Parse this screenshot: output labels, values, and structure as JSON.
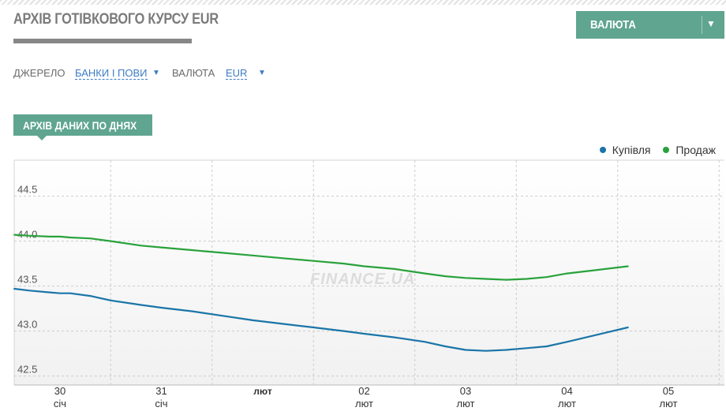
{
  "header": {
    "title": "АРХІВ ГОТІВКОВОГО КУРСУ EUR",
    "currency_button": "ВАЛЮТА"
  },
  "filters": {
    "source_label": "ДЖЕРЕЛО",
    "source_value": "БАНКИ І ПОВИ",
    "currency_label": "ВАЛЮТА",
    "currency_value": "EUR"
  },
  "section_tab": "АРХІВ ДАНИХ ПО ДНЯХ",
  "watermark": "FINANCE.UA",
  "colors": {
    "buy": "#1a75a8",
    "sell": "#29a23b",
    "accent": "#5fa58f"
  },
  "chart_data": {
    "type": "line",
    "x_ticks": [
      {
        "day": "30",
        "month": "січ"
      },
      {
        "day": "31",
        "month": "січ"
      },
      {
        "day": "лют",
        "month": ""
      },
      {
        "day": "02",
        "month": "лют"
      },
      {
        "day": "03",
        "month": "лют"
      },
      {
        "day": "04",
        "month": "лют"
      },
      {
        "day": "05",
        "month": "лют"
      }
    ],
    "y_ticks": [
      42.5,
      43.0,
      43.5,
      44.0,
      44.5
    ],
    "ylim": [
      42.4,
      44.9
    ],
    "xlim": [
      -0.45,
      6.5
    ],
    "grid": true,
    "legend_position": "top-right",
    "series": [
      {
        "name": "Купівля",
        "x": [
          -0.45,
          -0.3,
          -0.1,
          0.0,
          0.1,
          0.3,
          0.5,
          0.8,
          1.0,
          1.3,
          1.6,
          1.9,
          2.2,
          2.5,
          2.8,
          3.0,
          3.3,
          3.6,
          3.8,
          4.0,
          4.2,
          4.4,
          4.6,
          4.8,
          5.0,
          5.3,
          5.6
        ],
        "values": [
          43.47,
          43.45,
          43.43,
          43.42,
          43.42,
          43.39,
          43.34,
          43.29,
          43.26,
          43.22,
          43.17,
          43.12,
          43.08,
          43.04,
          43.0,
          42.97,
          42.93,
          42.88,
          42.83,
          42.79,
          42.78,
          42.79,
          42.81,
          42.83,
          42.88,
          42.96,
          43.04
        ]
      },
      {
        "name": "Продаж",
        "x": [
          -0.45,
          -0.3,
          -0.1,
          0.0,
          0.1,
          0.3,
          0.5,
          0.8,
          1.0,
          1.3,
          1.6,
          1.9,
          2.2,
          2.5,
          2.8,
          3.0,
          3.3,
          3.6,
          3.8,
          4.0,
          4.2,
          4.4,
          4.6,
          4.8,
          5.0,
          5.3,
          5.6
        ],
        "values": [
          44.07,
          44.06,
          44.05,
          44.05,
          44.04,
          44.03,
          44.0,
          43.95,
          43.93,
          43.9,
          43.87,
          43.84,
          43.81,
          43.78,
          43.75,
          43.72,
          43.69,
          43.64,
          43.61,
          43.59,
          43.58,
          43.57,
          43.58,
          43.6,
          43.64,
          43.68,
          43.72
        ]
      }
    ]
  }
}
